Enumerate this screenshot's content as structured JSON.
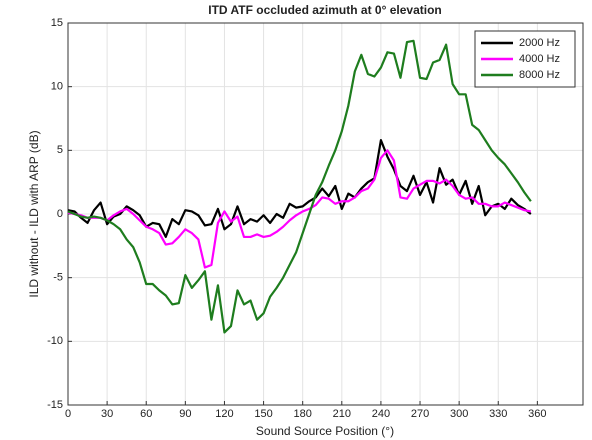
{
  "chart_data": {
    "type": "line",
    "title": "ITD ATF occluded azimuth at 0° elevation",
    "x_label": "Sound Source Position (°)",
    "y_label": "ILD without - ILD with ARP (dB)",
    "x": [
      0,
      5,
      10,
      15,
      20,
      25,
      30,
      35,
      40,
      45,
      50,
      55,
      60,
      65,
      70,
      75,
      80,
      85,
      90,
      95,
      100,
      105,
      110,
      115,
      120,
      125,
      130,
      135,
      140,
      145,
      150,
      155,
      160,
      165,
      170,
      175,
      180,
      185,
      190,
      195,
      200,
      205,
      210,
      215,
      220,
      225,
      230,
      235,
      240,
      245,
      250,
      255,
      260,
      265,
      270,
      275,
      280,
      285,
      290,
      295,
      300,
      305,
      310,
      315,
      320,
      325,
      330,
      335,
      340,
      345,
      350,
      355
    ],
    "series": [
      {
        "name": "2000 Hz",
        "color": "#000000",
        "values": [
          0.3,
          0.2,
          -0.3,
          -0.7,
          0.3,
          0.9,
          -0.8,
          -0.2,
          0,
          0.6,
          0.3,
          -0.1,
          -1,
          -0.7,
          -0.8,
          -1.8,
          -0.4,
          -0.8,
          0.3,
          0.2,
          -0.1,
          -0.9,
          -0.8,
          0.4,
          -1.2,
          -0.8,
          0.6,
          -0.8,
          -0.4,
          -0.6,
          -0.1,
          -0.7,
          0,
          -0.3,
          0.8,
          0.5,
          0.6,
          1,
          1.3,
          2,
          1.4,
          2.2,
          0.4,
          1.6,
          1.3,
          2,
          2.5,
          2.8,
          5.8,
          4.5,
          3.5,
          2.2,
          1.8,
          3,
          1.5,
          2.5,
          0.9,
          3.6,
          2.3,
          2.7,
          1.5,
          2.6,
          0.8,
          2.2,
          -0.1,
          0.6,
          0.8,
          0.4,
          1.2,
          0.7,
          0.4,
          0
        ]
      },
      {
        "name": "4000 Hz",
        "color": "#ff00ff",
        "values": [
          0.1,
          0,
          -0.1,
          -0.3,
          -0.3,
          -0.3,
          -0.5,
          -0.1,
          0.2,
          0.4,
          0,
          -0.5,
          -1,
          -1.2,
          -1.5,
          -2.4,
          -2.3,
          -1.8,
          -1.2,
          -1.5,
          -2,
          -4.2,
          -4,
          -0.7,
          0.2,
          -0.6,
          -0.2,
          -1.8,
          -1.8,
          -1.6,
          -1.8,
          -1.7,
          -1.4,
          -1,
          -0.5,
          -0.1,
          0.2,
          0.4,
          0.7,
          1.3,
          1.2,
          0.8,
          1,
          1,
          1.3,
          1.8,
          2,
          2.7,
          4.4,
          5,
          4.2,
          1.3,
          1.2,
          2,
          2.3,
          2.6,
          2.6,
          2.4,
          2.7,
          2.2,
          1.5,
          1.2,
          1.3,
          0.8,
          0.8,
          0.6,
          0.6,
          0.9,
          0.7,
          0.5,
          0.3,
          0.2
        ]
      },
      {
        "name": "8000 Hz",
        "color": "#1e7d1e",
        "values": [
          0.2,
          0,
          -0.2,
          -0.3,
          -0.2,
          -0.3,
          -0.5,
          -0.8,
          -1.2,
          -2,
          -2.6,
          -3.8,
          -5.5,
          -5.5,
          -6,
          -6.4,
          -7.1,
          -7,
          -4.8,
          -5.8,
          -5.2,
          -4.5,
          -8.3,
          -5.6,
          -9.3,
          -8.8,
          -6,
          -7.1,
          -6.8,
          -8.3,
          -7.8,
          -6.5,
          -5.8,
          -5,
          -4,
          -3,
          -1.5,
          0,
          1.5,
          2.5,
          3.8,
          5,
          6.5,
          8.5,
          11.2,
          12.5,
          11,
          10.8,
          11.5,
          12.7,
          12.6,
          10.7,
          13.5,
          13.6,
          10.7,
          10.6,
          11.9,
          12.1,
          13.3,
          10.2,
          9.4,
          9.4,
          7,
          6.6,
          5.8,
          5,
          4.4,
          3.9,
          3.2,
          2.5,
          1.7,
          1
        ]
      }
    ],
    "xlim": [
      0,
      395
    ],
    "xticks": [
      0,
      30,
      60,
      90,
      120,
      150,
      180,
      210,
      240,
      270,
      300,
      330,
      360
    ],
    "ylim": [
      -15,
      15
    ],
    "yticks": [
      -15,
      -10,
      -5,
      0,
      5,
      10,
      15
    ],
    "grid": true,
    "legend": "top-right"
  }
}
